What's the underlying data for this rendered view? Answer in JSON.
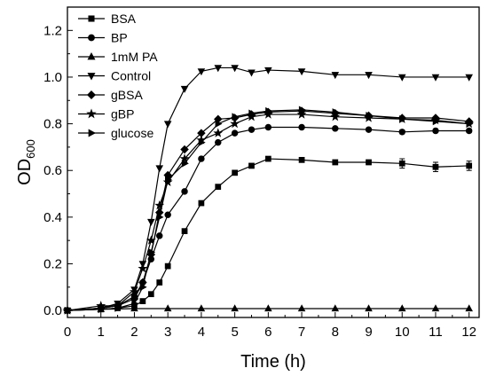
{
  "chart_data": {
    "type": "line",
    "xlabel": "Time (h)",
    "ylabel": {
      "main": "OD",
      "sub": "600"
    },
    "xlim": [
      0,
      12.3
    ],
    "ylim": [
      -0.03,
      1.3
    ],
    "xticks": [
      0,
      1,
      2,
      3,
      4,
      5,
      6,
      7,
      8,
      9,
      10,
      11,
      12
    ],
    "yticks": [
      0.0,
      0.2,
      0.4,
      0.6,
      0.8,
      1.0,
      1.2
    ],
    "ytick_labels": [
      "0.0",
      "0.2",
      "0.4",
      "0.6",
      "0.8",
      "1.0",
      "1.2"
    ],
    "grid": false,
    "legend_position": "top-left",
    "colors": {
      "line": "#000000",
      "background": "#ffffff"
    },
    "series": [
      {
        "name": "BSA",
        "marker": "square",
        "x": [
          0,
          1,
          1.5,
          2,
          2.25,
          2.5,
          2.75,
          3,
          3.5,
          4,
          4.5,
          5,
          5.5,
          6,
          7,
          8,
          9,
          10,
          11,
          12
        ],
        "y": [
          0.0,
          0.005,
          0.01,
          0.02,
          0.04,
          0.07,
          0.12,
          0.19,
          0.34,
          0.46,
          0.53,
          0.59,
          0.62,
          0.65,
          0.645,
          0.635,
          0.635,
          0.63,
          0.615,
          0.62
        ],
        "error": [
          0,
          0,
          0,
          0,
          0,
          0,
          0,
          0,
          0,
          0,
          0,
          0,
          0,
          0,
          0.008,
          0.008,
          0.008,
          0.02,
          0.02,
          0.02
        ]
      },
      {
        "name": "BP",
        "marker": "circle",
        "x": [
          0,
          1,
          1.5,
          2,
          2.25,
          2.5,
          2.75,
          3,
          3.5,
          4,
          4.5,
          5,
          5.5,
          6,
          7,
          8,
          9,
          10,
          11,
          12
        ],
        "y": [
          0.0,
          0.01,
          0.02,
          0.06,
          0.12,
          0.22,
          0.32,
          0.41,
          0.51,
          0.65,
          0.72,
          0.76,
          0.775,
          0.785,
          0.785,
          0.78,
          0.775,
          0.765,
          0.77,
          0.77
        ],
        "error": [
          0,
          0,
          0,
          0,
          0,
          0,
          0,
          0,
          0,
          0,
          0,
          0,
          0,
          0,
          0,
          0,
          0,
          0.008,
          0.008,
          0.008
        ]
      },
      {
        "name": "1mM PA",
        "marker": "triangle-up",
        "x": [
          0,
          1,
          2,
          3,
          4,
          5,
          6,
          7,
          8,
          9,
          10,
          11,
          12
        ],
        "y": [
          0.0,
          0.005,
          0.008,
          0.008,
          0.008,
          0.008,
          0.008,
          0.008,
          0.008,
          0.008,
          0.008,
          0.008,
          0.008
        ]
      },
      {
        "name": "Control",
        "marker": "triangle-down",
        "x": [
          0,
          1,
          1.5,
          2,
          2.25,
          2.5,
          2.75,
          3,
          3.5,
          4,
          4.5,
          5,
          5.5,
          6,
          7,
          8,
          9,
          10,
          11,
          12
        ],
        "y": [
          0.0,
          0.01,
          0.03,
          0.09,
          0.2,
          0.38,
          0.61,
          0.8,
          0.95,
          1.025,
          1.04,
          1.04,
          1.02,
          1.03,
          1.025,
          1.01,
          1.01,
          1.0,
          1.0,
          1.0
        ]
      },
      {
        "name": "gBSA",
        "marker": "diamond",
        "x": [
          0,
          1,
          1.5,
          2,
          2.25,
          2.5,
          2.75,
          3,
          3.5,
          4,
          4.5,
          5,
          5.5,
          6,
          7,
          8,
          9,
          10,
          11,
          12
        ],
        "y": [
          0.0,
          0.01,
          0.02,
          0.05,
          0.12,
          0.24,
          0.42,
          0.58,
          0.69,
          0.76,
          0.82,
          0.825,
          0.84,
          0.85,
          0.855,
          0.845,
          0.835,
          0.825,
          0.825,
          0.81
        ]
      },
      {
        "name": "gBP",
        "marker": "star",
        "x": [
          0,
          1,
          1.5,
          2,
          2.25,
          2.5,
          2.75,
          3,
          3.5,
          4,
          4.5,
          5,
          5.5,
          6,
          7,
          8,
          9,
          10,
          11,
          12
        ],
        "y": [
          0.0,
          0.02,
          0.02,
          0.08,
          0.18,
          0.3,
          0.45,
          0.55,
          0.65,
          0.73,
          0.76,
          0.8,
          0.83,
          0.84,
          0.84,
          0.83,
          0.825,
          0.82,
          0.815,
          0.8
        ]
      },
      {
        "name": "glucose",
        "marker": "triangle-right",
        "x": [
          0,
          1,
          1.5,
          2,
          2.25,
          2.5,
          2.75,
          3,
          3.5,
          4,
          4.5,
          5,
          5.5,
          6,
          7,
          8,
          9,
          10,
          11,
          12
        ],
        "y": [
          0.0,
          0.005,
          0.01,
          0.03,
          0.1,
          0.25,
          0.4,
          0.56,
          0.63,
          0.72,
          0.8,
          0.83,
          0.845,
          0.855,
          0.86,
          0.85,
          0.835,
          0.82,
          0.81,
          0.8
        ]
      }
    ]
  }
}
